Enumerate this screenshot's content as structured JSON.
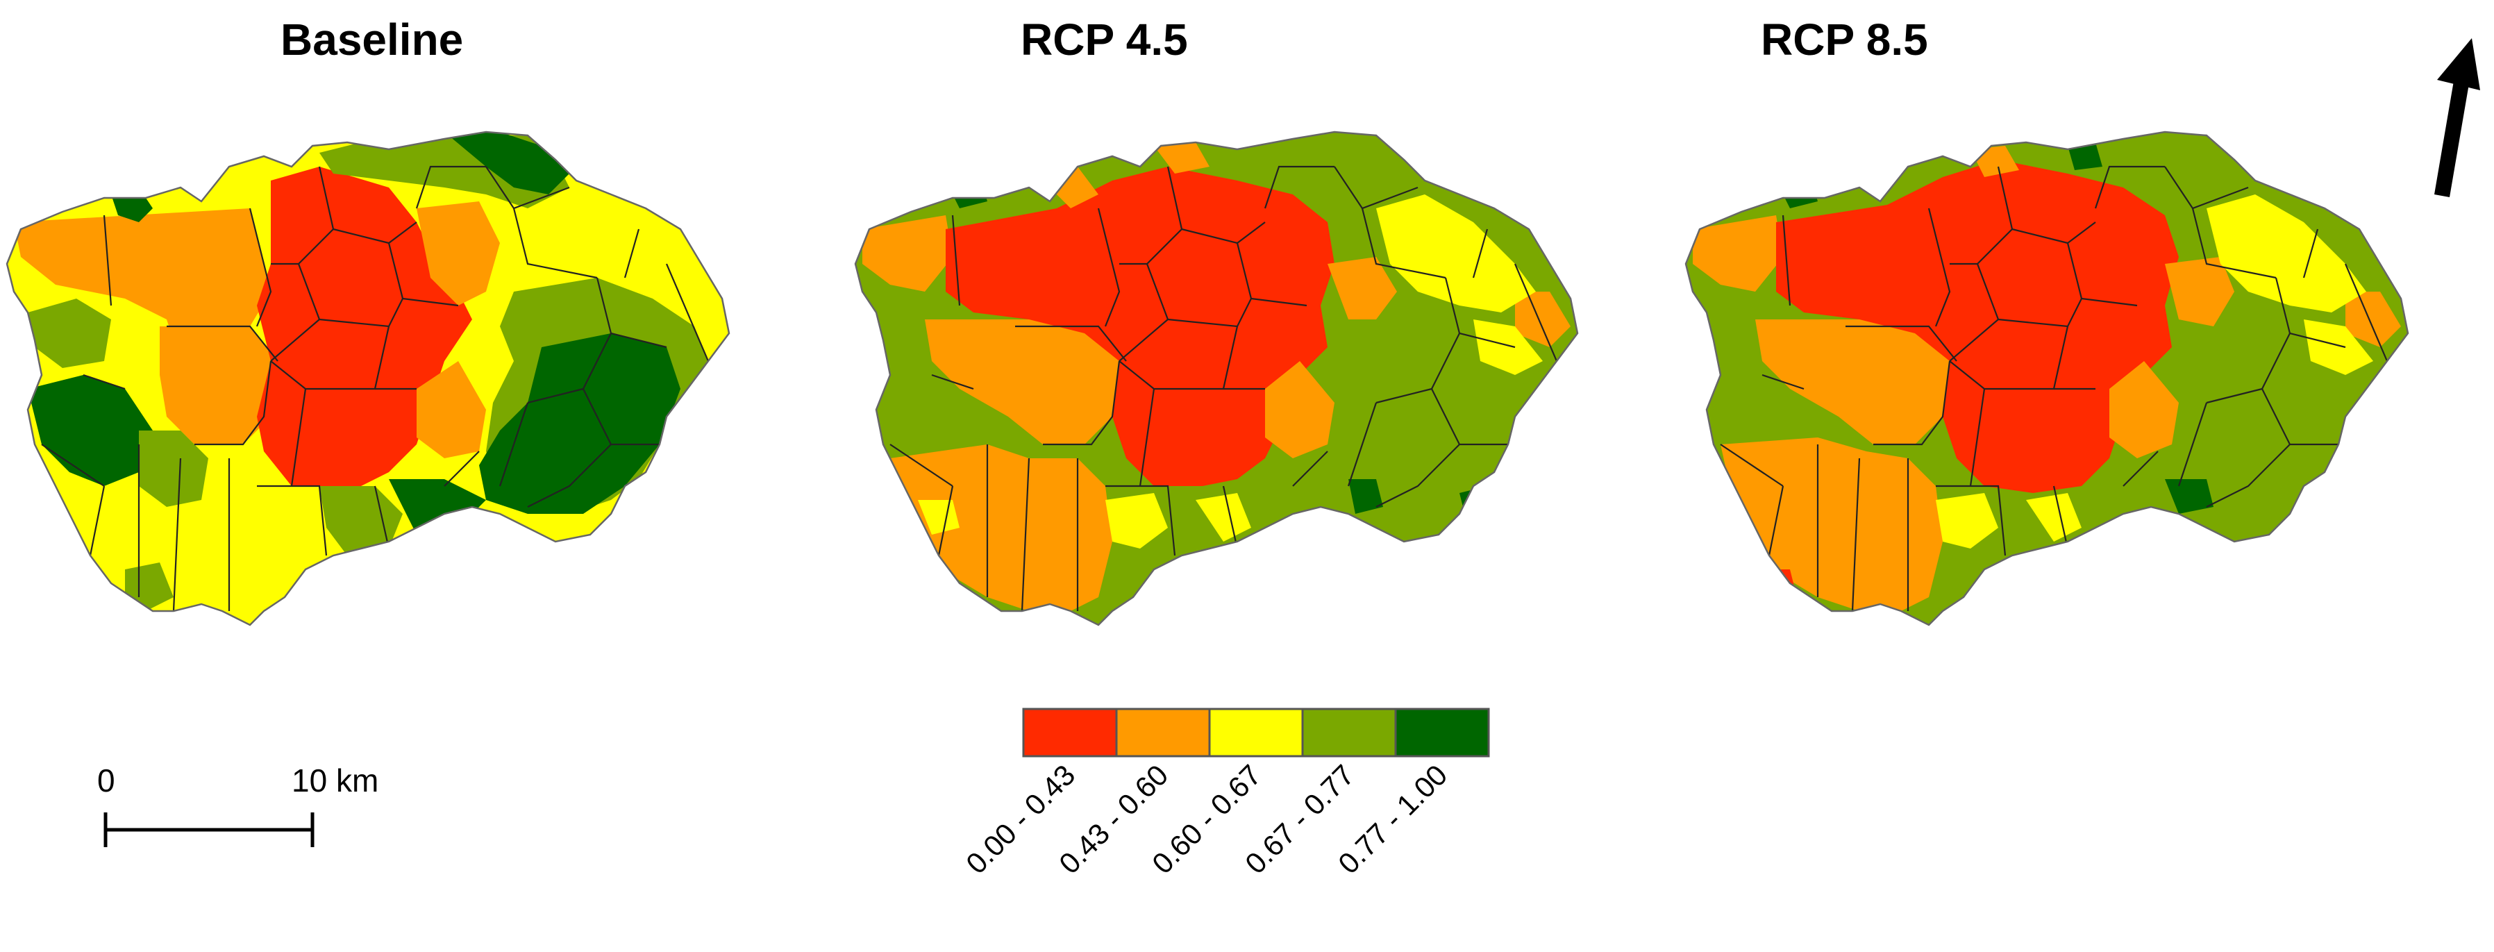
{
  "maps": [
    {
      "title": "Baseline"
    },
    {
      "title": "RCP 4.5"
    },
    {
      "title": "RCP 8.5"
    }
  ],
  "scale_bar": {
    "start_label": "0",
    "end_label": "10 km"
  },
  "legend": [
    {
      "label": "0.00 - 0.43",
      "color": "#ff2a00"
    },
    {
      "label": "0.43 - 0.60",
      "color": "#ff9a00"
    },
    {
      "label": "0.60 - 0.67",
      "color": "#ffff00"
    },
    {
      "label": "0.67 - 0.77",
      "color": "#7aa800"
    },
    {
      "label": "0.77 - 1.00",
      "color": "#006600"
    }
  ],
  "north_arrow": {
    "icon": "north-arrow-icon"
  }
}
